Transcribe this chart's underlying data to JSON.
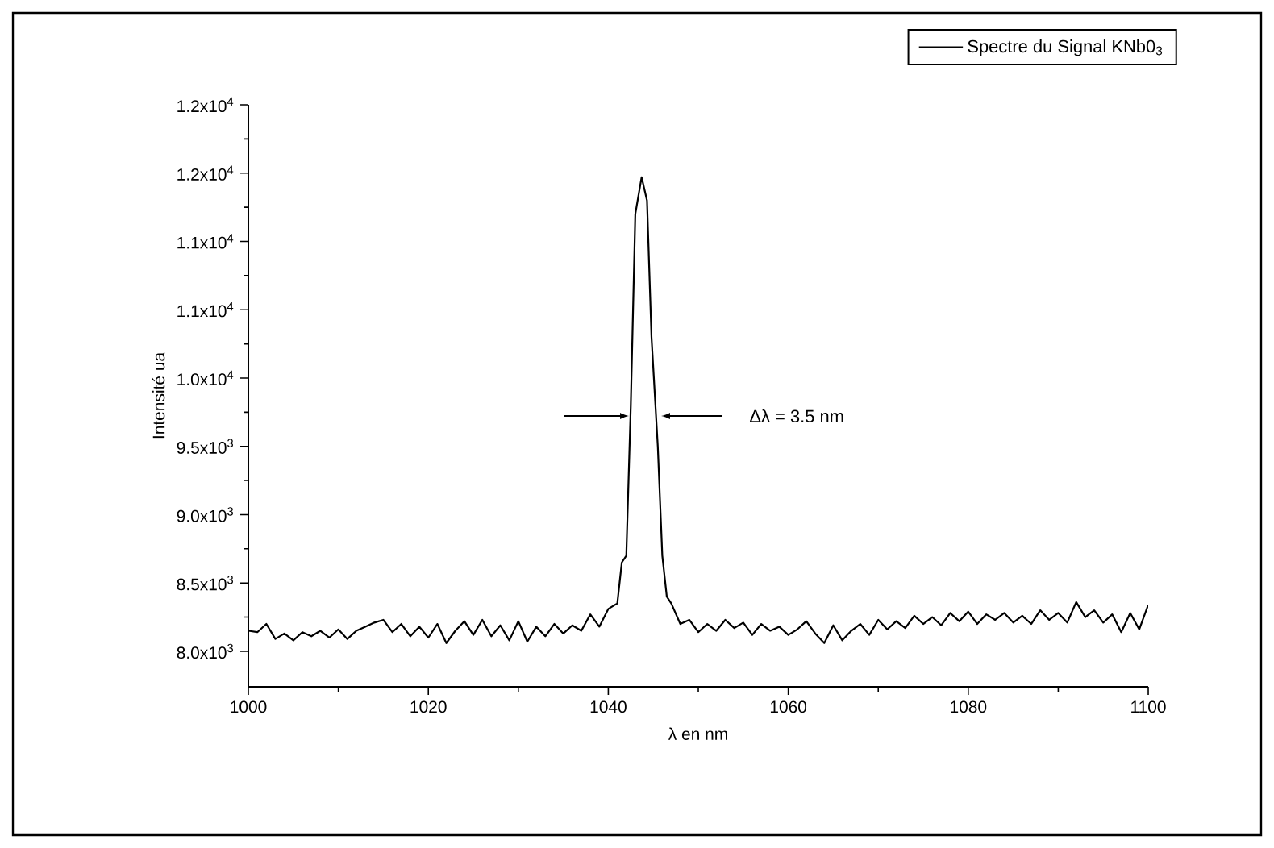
{
  "chart_data": {
    "type": "line",
    "xlabel": "λ en nm",
    "ylabel": "Intensité ua",
    "xlim": [
      1000,
      1100
    ],
    "xticks": [
      1000,
      1020,
      1040,
      1060,
      1080,
      1100
    ],
    "ylim": [
      7740,
      12000
    ],
    "yticks": [
      {
        "value": 8000,
        "label": "8.0x10$^{3}$"
      },
      {
        "value": 8500,
        "label": "8.5x10$^{3}$"
      },
      {
        "value": 9000,
        "label": "9.0x10$^{3}$"
      },
      {
        "value": 9500,
        "label": "9.5x10$^{3}$"
      },
      {
        "value": 10000,
        "label": "1.0x10$^{4}$"
      },
      {
        "value": 10500,
        "label": "1.1x10$^{4}$"
      },
      {
        "value": 11000,
        "label": "1.1x10$^{4}$"
      },
      {
        "value": 11500,
        "label": "1.2x10$^{4}$"
      },
      {
        "value": 12000,
        "label": "1.2x10$^{4}$"
      }
    ],
    "legend": "top right",
    "grid": false,
    "marker": "none",
    "line_style": "solid",
    "annotations": [
      "Δλ = 3.5 nm"
    ],
    "series": [
      {
        "name": "Spectre du Signal KNb0$_{3}$",
        "color": "#000000",
        "x": [
          1000,
          1001,
          1002,
          1003,
          1004,
          1005,
          1006,
          1007,
          1008,
          1009,
          1010,
          1011,
          1012,
          1013,
          1014,
          1015,
          1016,
          1017,
          1018,
          1019,
          1020,
          1021,
          1022,
          1023,
          1024,
          1025,
          1026,
          1027,
          1028,
          1029,
          1030,
          1031,
          1032,
          1033,
          1034,
          1035,
          1036,
          1037,
          1038,
          1039,
          1040,
          1041,
          1041.5,
          1042,
          1042.5,
          1043,
          1043.7,
          1044.3,
          1044.8,
          1045.5,
          1046,
          1046.5,
          1047,
          1048,
          1049,
          1050,
          1051,
          1052,
          1053,
          1054,
          1055,
          1056,
          1057,
          1058,
          1059,
          1060,
          1061,
          1062,
          1063,
          1064,
          1065,
          1066,
          1067,
          1068,
          1069,
          1070,
          1071,
          1072,
          1073,
          1074,
          1075,
          1076,
          1077,
          1078,
          1079,
          1080,
          1081,
          1082,
          1083,
          1084,
          1085,
          1086,
          1087,
          1088,
          1089,
          1090,
          1091,
          1092,
          1093,
          1094,
          1095,
          1096,
          1097,
          1098,
          1099,
          1100
        ],
        "values": [
          8150,
          8140,
          8200,
          8090,
          8130,
          8080,
          8140,
          8110,
          8150,
          8100,
          8160,
          8090,
          8150,
          8180,
          8210,
          8230,
          8140,
          8200,
          8110,
          8180,
          8100,
          8200,
          8060,
          8150,
          8220,
          8120,
          8230,
          8110,
          8190,
          8080,
          8220,
          8070,
          8180,
          8110,
          8200,
          8130,
          8190,
          8150,
          8270,
          8180,
          8310,
          8350,
          8650,
          8700,
          9800,
          11200,
          11470,
          11300,
          10300,
          9500,
          8700,
          8400,
          8350,
          8200,
          8230,
          8140,
          8200,
          8150,
          8230,
          8170,
          8210,
          8120,
          8200,
          8150,
          8180,
          8120,
          8160,
          8220,
          8130,
          8060,
          8190,
          8080,
          8150,
          8200,
          8120,
          8230,
          8160,
          8220,
          8170,
          8260,
          8200,
          8250,
          8190,
          8280,
          8220,
          8290,
          8200,
          8270,
          8230,
          8280,
          8210,
          8260,
          8200,
          8300,
          8230,
          8280,
          8210,
          8360,
          8250,
          8300,
          8210,
          8270,
          8140,
          8280,
          8160,
          8340
        ]
      }
    ]
  }
}
